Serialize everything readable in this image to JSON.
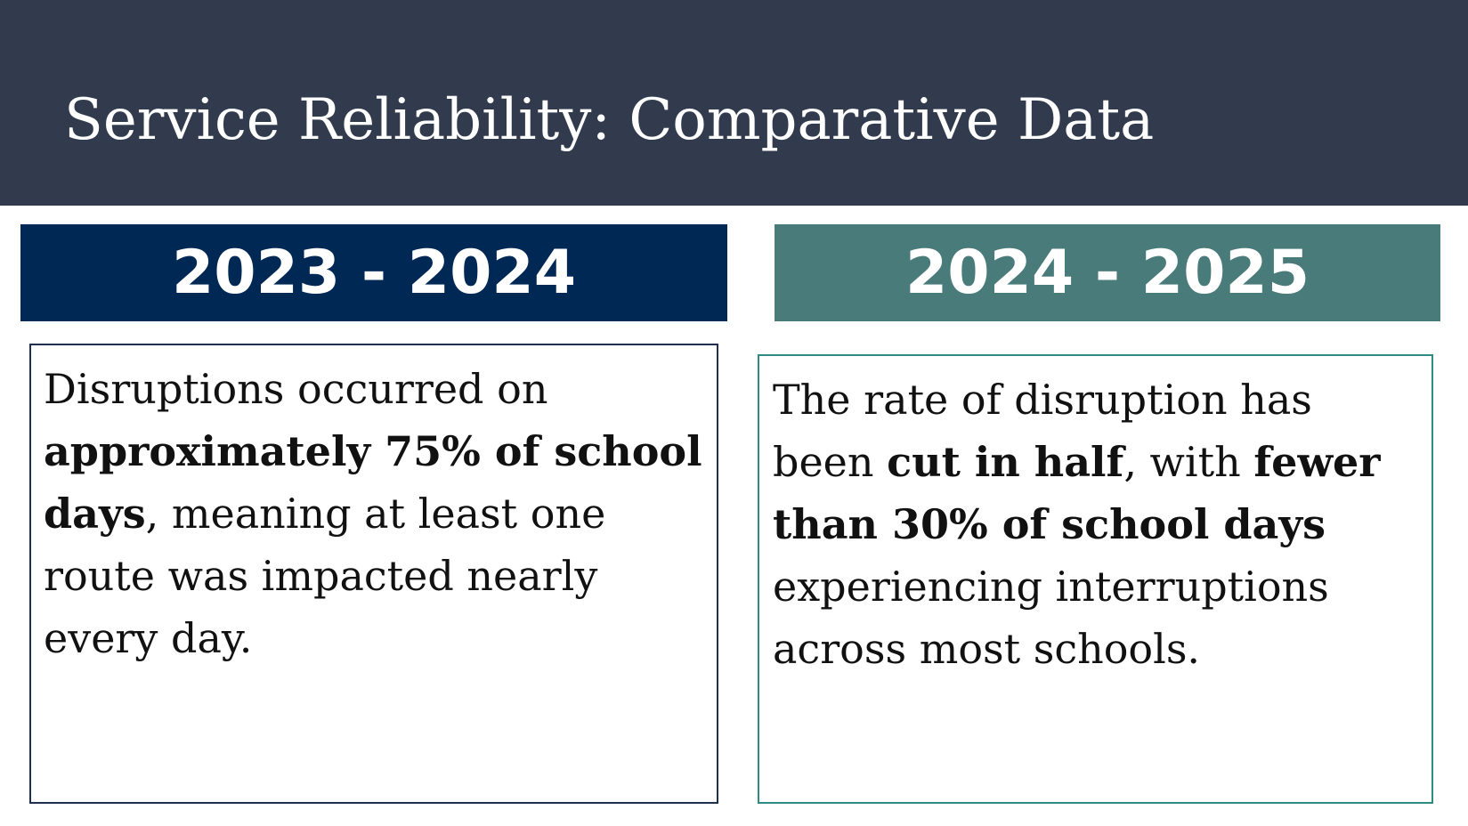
{
  "title": "Service Reliability: Comparative Data",
  "colors": {
    "title_bar": "#323a4d",
    "left_header": "#002855",
    "right_header": "#4a7b7b",
    "left_border": "#1f2f4f",
    "right_border": "#2e8b82"
  },
  "columns": [
    {
      "year": "2023 - 2024",
      "text": {
        "part1": "Disruptions occurred on ",
        "bold1": "approximately 75% of school days",
        "part2": ", meaning at least one route was impacted nearly every day."
      }
    },
    {
      "year": "2024 - 2025",
      "text": {
        "part1": "The rate of disruption has been ",
        "bold1": "cut in half",
        "part2": ", with ",
        "bold2": "fewer than 30% of school days",
        "part3": " experiencing interruptions across most schools."
      }
    }
  ]
}
